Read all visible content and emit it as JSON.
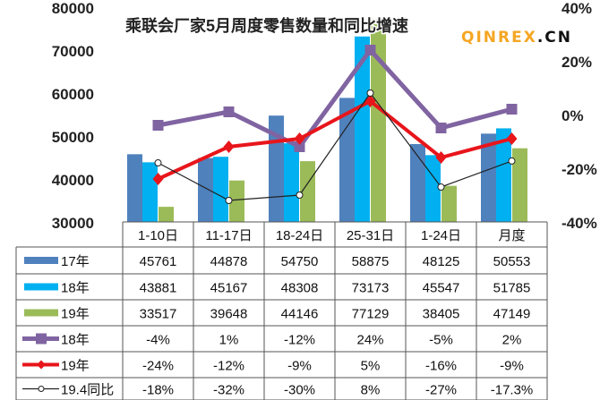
{
  "chart_data": {
    "type": "bar",
    "title": "乘联会厂家5月周度零售数量和同比增速",
    "categories": [
      "1-10日",
      "11-17日",
      "18-24日",
      "25-31日",
      "1-24日",
      "月度"
    ],
    "ylim": [
      30000,
      80000
    ],
    "yticks": [
      "30000",
      "40000",
      "50000",
      "60000",
      "70000",
      "80000"
    ],
    "y2lim": [
      -40,
      40
    ],
    "y2ticks": [
      "-40%",
      "-20%",
      "0%",
      "20%",
      "40%"
    ],
    "bar_series": [
      {
        "name": "17年",
        "color": "#4f81bd",
        "values": [
          45761,
          44878,
          54750,
          58875,
          48125,
          50553
        ],
        "labels": [
          "45761",
          "44878",
          "54750",
          "58875",
          "48125",
          "50553"
        ]
      },
      {
        "name": "18年",
        "color": "#00b0f0",
        "values": [
          43881,
          45167,
          48308,
          73173,
          45547,
          51785
        ],
        "labels": [
          "43881",
          "45167",
          "48308",
          "73173",
          "45547",
          "51785"
        ]
      },
      {
        "name": "19年",
        "color": "#9bbb59",
        "values": [
          33517,
          39648,
          44146,
          77129,
          38405,
          47149
        ],
        "labels": [
          "33517",
          "39648",
          "44146",
          "77129",
          "38405",
          "47149"
        ]
      }
    ],
    "line_series": [
      {
        "name": "18年",
        "color": "#8064a2",
        "values": [
          -4,
          1,
          -12,
          24,
          -5,
          2
        ],
        "labels": [
          "-4%",
          "1%",
          "-12%",
          "24%",
          "-5%",
          "2%"
        ]
      },
      {
        "name": "19年",
        "color": "#e8151b",
        "values": [
          -24,
          -12,
          -9,
          5,
          -16,
          -9
        ],
        "labels": [
          "-24%",
          "-12%",
          "-9%",
          "5%",
          "-16%",
          "-9%"
        ]
      },
      {
        "name": "19.4同比",
        "color": "#222222",
        "values": [
          -18,
          -32,
          -30,
          8,
          -27,
          -17.3
        ],
        "labels": [
          "-18%",
          "-32%",
          "-30%",
          "8%",
          "-27%",
          "-17.3%"
        ]
      }
    ]
  },
  "watermark": {
    "main": "QINREX",
    "suffix": ".CN"
  }
}
